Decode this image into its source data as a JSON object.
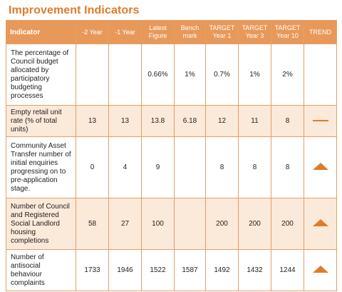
{
  "title": "Improvement Indicators",
  "headers": [
    "Indicator",
    "-2 Year",
    "-1 Year",
    "Latest Figure",
    "Bench mark",
    "TARGET Year 1",
    "TARGET Year 3",
    "TARGET Year 10",
    "TREND"
  ],
  "rows": [
    {
      "indicator": "The percentage of Council budget allocated by participatory budgeting processes",
      "minus2": "",
      "minus1": "",
      "latest": "0.66%",
      "benchmark": "1%",
      "target1": "0.7%",
      "target3": "1%",
      "target10": "2%",
      "trend": "none"
    },
    {
      "indicator": "Empty retail unit rate (% of total units)",
      "minus2": "13",
      "minus1": "13",
      "latest": "13.8",
      "benchmark": "6.18",
      "target1": "12",
      "target3": "11",
      "target10": "8",
      "trend": "flat-dash-icon"
    },
    {
      "indicator": "Community Asset Transfer number of initial enquiries progressing on to pre-application stage.",
      "minus2": "0",
      "minus1": "4",
      "latest": "9",
      "benchmark": "",
      "target1": "8",
      "target3": "8",
      "target10": "8",
      "trend": "up-triangle-icon"
    },
    {
      "indicator": "Number of Council and Registered Social Landlord housing completions",
      "minus2": "58",
      "minus1": "27",
      "latest": "100",
      "benchmark": "",
      "target1": "200",
      "target3": "200",
      "target10": "200",
      "trend": "up-triangle-icon"
    },
    {
      "indicator": "Number of antisocial behaviour complaints",
      "minus2": "1733",
      "minus1": "1946",
      "latest": "1522",
      "benchmark": "1587",
      "target1": "1492",
      "target3": "1432",
      "target10": "1244",
      "trend": "up-triangle-icon"
    }
  ],
  "colors": {
    "accent": "#e07b2a",
    "header_bg": "#e8995a",
    "alt_row_bg": "#fbe9da",
    "border": "#e2a066"
  }
}
